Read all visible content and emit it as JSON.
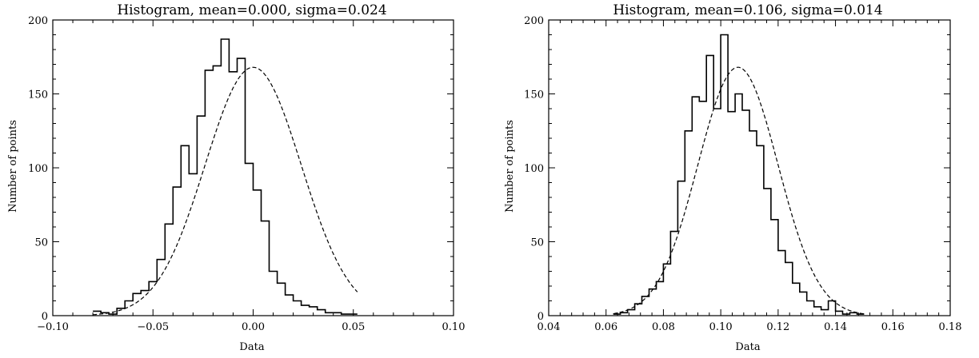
{
  "chart_data": [
    {
      "type": "histogram",
      "title": "Histogram, mean=0.000, sigma=0.024",
      "xlabel": "Data",
      "ylabel": "Number of points",
      "xlim": [
        -0.1,
        0.1
      ],
      "ylim": [
        0,
        200
      ],
      "xticks": [
        -0.1,
        -0.05,
        0.0,
        0.05,
        0.1
      ],
      "xtick_labels": [
        "−0.10",
        "−0.05",
        "0.00",
        "0.05",
        "0.10"
      ],
      "yticks": [
        0,
        50,
        100,
        150,
        200
      ],
      "ytick_labels": [
        "0",
        "50",
        "100",
        "150",
        "200"
      ],
      "bin_start": -0.08,
      "bin_width": 0.004,
      "counts": [
        3,
        2,
        1,
        5,
        10,
        15,
        17,
        23,
        38,
        62,
        87,
        115,
        96,
        135,
        166,
        169,
        187,
        165,
        174,
        103,
        85,
        64,
        30,
        22,
        14,
        10,
        7,
        6,
        4,
        2,
        2,
        1,
        1
      ],
      "fit": {
        "mean": 0.0,
        "sigma": 0.024,
        "peak": 168
      },
      "grid": false,
      "line_color": "#000000"
    },
    {
      "type": "histogram",
      "title": "Histogram, mean=0.106, sigma=0.014",
      "xlabel": "Data",
      "ylabel": "Number of points",
      "xlim": [
        0.04,
        0.18
      ],
      "ylim": [
        0,
        200
      ],
      "xticks": [
        0.04,
        0.06,
        0.08,
        0.1,
        0.12,
        0.14,
        0.16,
        0.18
      ],
      "xtick_labels": [
        "0.04",
        "0.06",
        "0.08",
        "0.10",
        "0.12",
        "0.14",
        "0.16",
        "0.18"
      ],
      "yticks": [
        0,
        50,
        100,
        150,
        200
      ],
      "ytick_labels": [
        "0",
        "50",
        "100",
        "150",
        "200"
      ],
      "bin_start": 0.0625,
      "bin_width": 0.0025,
      "counts": [
        1,
        2,
        4,
        8,
        13,
        18,
        23,
        35,
        57,
        91,
        125,
        148,
        145,
        176,
        140,
        190,
        138,
        150,
        139,
        125,
        115,
        86,
        65,
        44,
        36,
        22,
        16,
        10,
        6,
        4,
        10,
        3,
        1,
        2,
        1
      ],
      "fit": {
        "mean": 0.106,
        "sigma": 0.014,
        "peak": 168
      },
      "grid": false,
      "line_color": "#000000"
    }
  ]
}
